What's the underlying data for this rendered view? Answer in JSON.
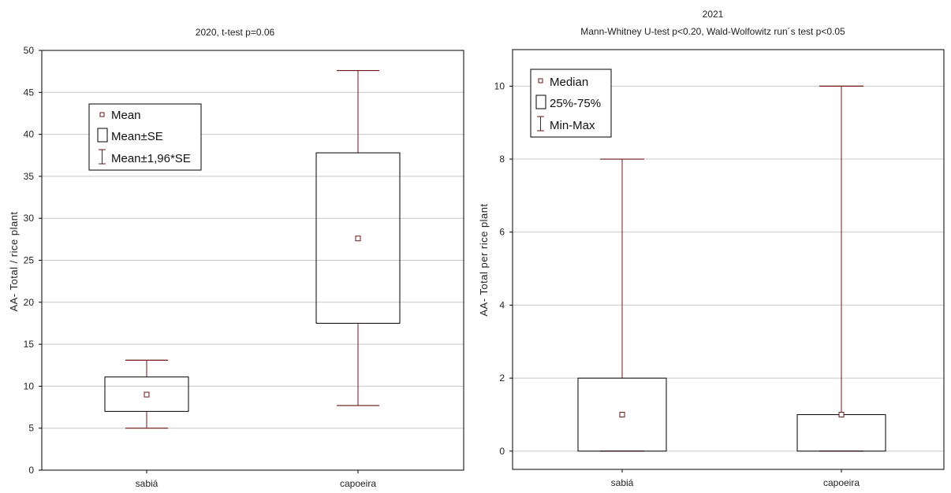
{
  "colors": {
    "box": "#6b1414",
    "frame": "#000000",
    "grid": "#c8c8c8",
    "background": "#ffffff"
  },
  "chart_data": [
    {
      "type": "box",
      "title": "2020, t-test p=0.06",
      "xlabel": "",
      "ylabel": "AA- Total / rice plant",
      "categories": [
        "sabiá",
        "capoeira"
      ],
      "ylim": [
        0,
        50
      ],
      "yticks": [
        0,
        5,
        10,
        15,
        20,
        25,
        30,
        35,
        40,
        45,
        50
      ],
      "grid": true,
      "legend_position": "top-left",
      "legend": [
        "Mean",
        "Mean±SE",
        "Mean±1,96*SE"
      ],
      "boxes": [
        {
          "category": "sabiá",
          "center": 9.0,
          "box_low": 7.0,
          "box_high": 11.1,
          "whisker_low": 5.0,
          "whisker_high": 13.1
        },
        {
          "category": "capoeira",
          "center": 27.6,
          "box_low": 17.5,
          "box_high": 37.8,
          "whisker_low": 7.7,
          "whisker_high": 47.6
        }
      ]
    },
    {
      "type": "box",
      "title_line1": "2021",
      "title_line2": "Mann-Whitney U-test p<0.20, Wald-Wolfowitz run´s test p<0.05",
      "xlabel": "",
      "ylabel": "AA- Total per rice plant",
      "categories": [
        "sabiá",
        "capoeira"
      ],
      "ylim": [
        -0.5,
        11
      ],
      "yticks": [
        0,
        2,
        4,
        6,
        8,
        10
      ],
      "grid": true,
      "legend_position": "top-left",
      "legend": [
        "Median",
        "25%-75%",
        "Min-Max"
      ],
      "boxes": [
        {
          "category": "sabiá",
          "center": 1,
          "box_low": 0,
          "box_high": 2,
          "whisker_low": 0,
          "whisker_high": 8
        },
        {
          "category": "capoeira",
          "center": 1,
          "box_low": 0,
          "box_high": 1,
          "whisker_low": 0,
          "whisker_high": 10
        }
      ]
    }
  ]
}
